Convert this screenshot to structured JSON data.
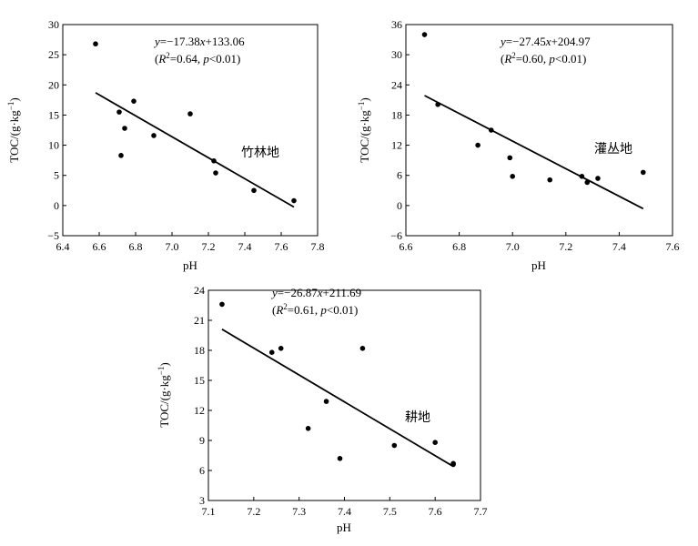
{
  "chart_data": [
    {
      "type": "scatter",
      "label": "竹林地",
      "xlabel": "pH",
      "ylabel_main": "TOC/(g·kg",
      "ylabel_sup": "−1",
      "ylabel_close": ")",
      "xlim": [
        6.4,
        7.8
      ],
      "ylim": [
        -5,
        30
      ],
      "xticks": [
        6.4,
        6.6,
        6.8,
        7.0,
        7.2,
        7.4,
        7.6,
        7.8
      ],
      "yticks": [
        -5,
        0,
        5,
        10,
        15,
        20,
        25,
        30
      ],
      "xtick_labels": [
        "6.4",
        "6.6",
        "6.8",
        "7.0",
        "7.2",
        "7.4",
        "7.6",
        "7.8"
      ],
      "ytick_labels": [
        "−5",
        "0",
        "5",
        "10",
        "15",
        "20",
        "25",
        "30"
      ],
      "equation": {
        "y": "y",
        "rhs": "=−17.38",
        "x": "x",
        "rest": "+133.06"
      },
      "stats": {
        "open": "(",
        "R": "R",
        "two": "2",
        "eqR": "=0.64, ",
        "p": "p",
        "pval": "<0.01)"
      },
      "points": [
        {
          "x": 6.58,
          "y": 26.8
        },
        {
          "x": 6.71,
          "y": 15.5
        },
        {
          "x": 6.72,
          "y": 8.3
        },
        {
          "x": 6.74,
          "y": 12.8
        },
        {
          "x": 6.79,
          "y": 17.3
        },
        {
          "x": 6.9,
          "y": 11.6
        },
        {
          "x": 7.1,
          "y": 15.2
        },
        {
          "x": 7.23,
          "y": 7.4
        },
        {
          "x": 7.24,
          "y": 5.4
        },
        {
          "x": 7.45,
          "y": 2.5
        },
        {
          "x": 7.67,
          "y": 0.8
        }
      ],
      "fit": {
        "slope": -17.38,
        "intercept": 133.06,
        "x_range": [
          6.58,
          7.67
        ]
      }
    },
    {
      "type": "scatter",
      "label": "灌丛地",
      "xlabel": "pH",
      "ylabel_main": "TOC/(g·kg",
      "ylabel_sup": "−1",
      "ylabel_close": ")",
      "xlim": [
        6.6,
        7.6
      ],
      "ylim": [
        -6,
        36
      ],
      "xticks": [
        6.6,
        6.8,
        7.0,
        7.2,
        7.4,
        7.6
      ],
      "yticks": [
        -6,
        0,
        6,
        12,
        18,
        24,
        30,
        36
      ],
      "xtick_labels": [
        "6.6",
        "6.8",
        "7.0",
        "7.2",
        "7.4",
        "7.6"
      ],
      "ytick_labels": [
        "−6",
        "0",
        "6",
        "12",
        "18",
        "24",
        "30",
        "36"
      ],
      "equation": {
        "y": "y",
        "rhs": "=−27.45",
        "x": "x",
        "rest": "+204.97"
      },
      "stats": {
        "open": "(",
        "R": "R",
        "two": "2",
        "eqR": "=0.60, ",
        "p": "p",
        "pval": "<0.01)"
      },
      "points": [
        {
          "x": 6.67,
          "y": 34.0
        },
        {
          "x": 6.72,
          "y": 20.1
        },
        {
          "x": 6.87,
          "y": 12.0
        },
        {
          "x": 6.92,
          "y": 15.0
        },
        {
          "x": 6.99,
          "y": 9.5
        },
        {
          "x": 7.0,
          "y": 5.8
        },
        {
          "x": 7.14,
          "y": 5.1
        },
        {
          "x": 7.26,
          "y": 5.8
        },
        {
          "x": 7.28,
          "y": 4.6
        },
        {
          "x": 7.32,
          "y": 5.4
        },
        {
          "x": 7.49,
          "y": 6.6
        }
      ],
      "fit": {
        "slope": -27.45,
        "intercept": 204.97,
        "x_range": [
          6.67,
          7.49
        ]
      }
    },
    {
      "type": "scatter",
      "label": "耕地",
      "xlabel": "pH",
      "ylabel_main": "TOC/(g·kg",
      "ylabel_sup": "−1",
      "ylabel_close": ")",
      "xlim": [
        7.1,
        7.7
      ],
      "ylim": [
        3,
        24
      ],
      "xticks": [
        7.1,
        7.2,
        7.3,
        7.4,
        7.5,
        7.6,
        7.7
      ],
      "yticks": [
        3,
        6,
        9,
        12,
        15,
        18,
        21,
        24
      ],
      "xtick_labels": [
        "7.1",
        "7.2",
        "7.3",
        "7.4",
        "7.5",
        "7.6",
        "7.7"
      ],
      "ytick_labels": [
        "3",
        "6",
        "9",
        "12",
        "15",
        "18",
        "21",
        "24"
      ],
      "equation": {
        "y": "y",
        "rhs": "=−26.87",
        "x": "x",
        "rest": "+211.69"
      },
      "stats": {
        "open": "(",
        "R": "R",
        "two": "2",
        "eqR": "=0.61, ",
        "p": "p",
        "pval": "<0.01)"
      },
      "points": [
        {
          "x": 7.13,
          "y": 22.6
        },
        {
          "x": 7.24,
          "y": 17.8
        },
        {
          "x": 7.26,
          "y": 18.2
        },
        {
          "x": 7.32,
          "y": 10.2
        },
        {
          "x": 7.36,
          "y": 12.9
        },
        {
          "x": 7.39,
          "y": 7.2
        },
        {
          "x": 7.44,
          "y": 18.2
        },
        {
          "x": 7.51,
          "y": 8.5
        },
        {
          "x": 7.6,
          "y": 8.8
        },
        {
          "x": 7.64,
          "y": 6.7
        },
        {
          "x": 7.64,
          "y": 6.6
        }
      ],
      "fit": {
        "slope": -26.87,
        "intercept": 211.69,
        "x_range": [
          7.13,
          7.64
        ]
      }
    }
  ]
}
